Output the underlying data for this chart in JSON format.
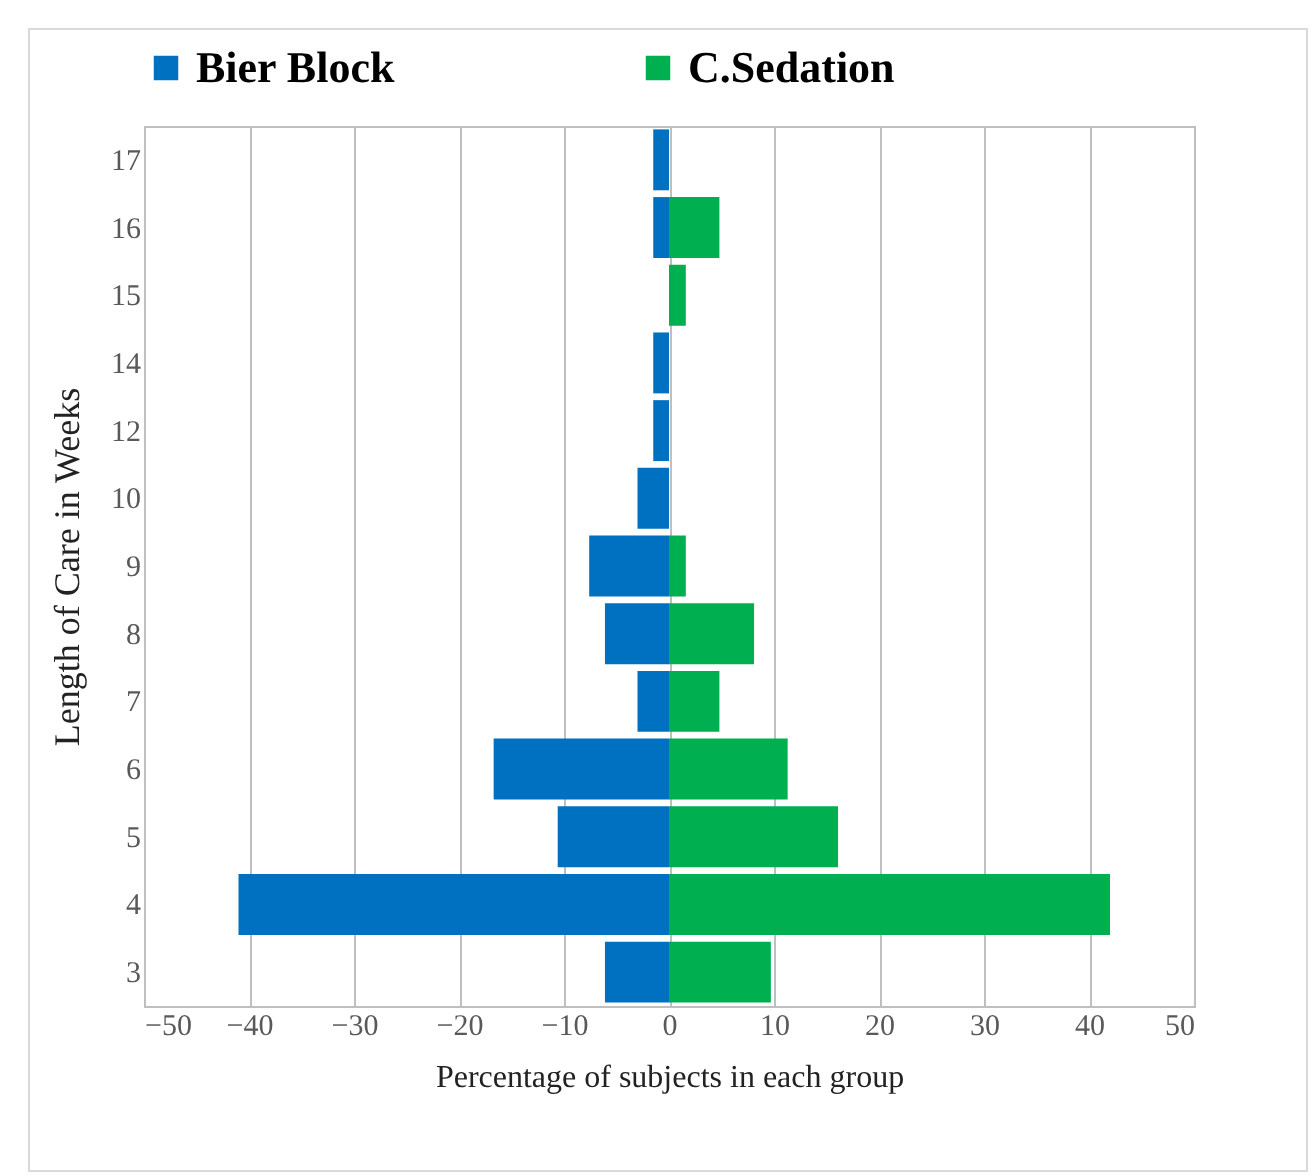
{
  "chart_data": {
    "type": "bar",
    "orientation": "horizontal",
    "xlabel": "Percentage of subjects in each group",
    "ylabel": "Length of Care in Weeks",
    "categories": [
      "17",
      "16",
      "15",
      "14",
      "12",
      "10",
      "9",
      "8",
      "7",
      "6",
      "5",
      "4",
      "3"
    ],
    "series": [
      {
        "name": "Bier Block",
        "color": "#0070c0",
        "values": [
          -1.5,
          -1.5,
          0,
          -1.5,
          -1.5,
          -3,
          -7.6,
          -6.1,
          -3,
          -16.7,
          -10.6,
          -41,
          -6.1
        ]
      },
      {
        "name": "C.Sedation",
        "color": "#00b050",
        "values": [
          0,
          4.8,
          1.6,
          0,
          0,
          0,
          1.6,
          8.1,
          4.8,
          11.3,
          16.1,
          42,
          9.7
        ]
      }
    ],
    "xlim": [
      -50,
      50
    ],
    "xticks": [
      -50,
      -40,
      -30,
      -20,
      -10,
      0,
      10,
      20,
      30,
      40,
      50
    ],
    "grid": "x",
    "legend": "top",
    "stacked": true
  }
}
